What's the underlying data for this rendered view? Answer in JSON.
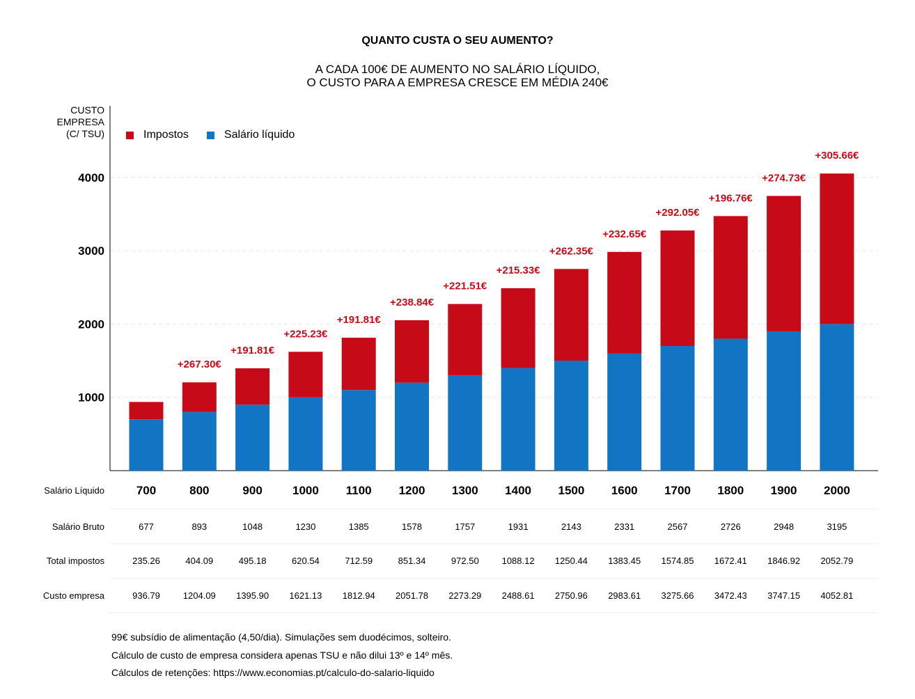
{
  "title": "QUANTO CUSTA O SEU AUMENTO?",
  "subtitle_line1": "A CADA 100€ DE AUMENTO NO SALÁRIO LÍQUIDO,",
  "subtitle_line2": "O CUSTO PARA A EMPRESA CRESCE EM MÉDIA 240€",
  "ylabel_line1": "CUSTO",
  "ylabel_line2": "EMPRESA",
  "ylabel_line3": "(C/ TSU)",
  "legend": [
    {
      "label": "Impostos",
      "color": "#c70a17"
    },
    {
      "label": "Salário líquido",
      "color": "#1275c4"
    }
  ],
  "table_rows": [
    {
      "label": "Salário Líquido"
    },
    {
      "label": "Salário Bruto"
    },
    {
      "label": "Total impostos"
    },
    {
      "label": "Custo empresa"
    }
  ],
  "chart_data": {
    "type": "bar",
    "stacked": true,
    "categories": [
      "700",
      "800",
      "900",
      "1000",
      "1100",
      "1200",
      "1300",
      "1400",
      "1500",
      "1600",
      "1700",
      "1800",
      "1900",
      "2000"
    ],
    "series": [
      {
        "name": "Salário líquido",
        "color": "#1275c4",
        "values": [
          700,
          800,
          900,
          1000,
          1100,
          1200,
          1300,
          1400,
          1500,
          1600,
          1700,
          1800,
          1900,
          2000
        ]
      },
      {
        "name": "Impostos",
        "color": "#c70a17",
        "values": [
          236.79,
          404.09,
          495.9,
          621.13,
          712.94,
          851.78,
          973.29,
          1088.61,
          1250.96,
          1383.61,
          1575.66,
          1672.43,
          1847.15,
          2052.81
        ]
      }
    ],
    "annotations": [
      "",
      "+267.30€",
      "+191.81€",
      "+225.23€",
      "+191.81€",
      "+238.84€",
      "+221.51€",
      "+215.33€",
      "+262.35€",
      "+232.65€",
      "+292.05€",
      "+196.76€",
      "+274.73€",
      "+305.66€"
    ],
    "yticks": [
      1000,
      2000,
      3000,
      4000
    ],
    "ylim": [
      0,
      4200
    ],
    "grid": true,
    "legend_position": "top-left",
    "salario_bruto": [
      "677",
      "893",
      "1048",
      "1230",
      "1385",
      "1578",
      "1757",
      "1931",
      "2143",
      "2331",
      "2567",
      "2726",
      "2948",
      "3195"
    ],
    "total_impostos": [
      "235.26",
      "404.09",
      "495.18",
      "620.54",
      "712.59",
      "851.34",
      "972.50",
      "1088.12",
      "1250.44",
      "1383.45",
      "1574.85",
      "1672.41",
      "1846.92",
      "2052.79"
    ],
    "custo_empresa": [
      "936.79",
      "1204.09",
      "1395.90",
      "1621.13",
      "1812.94",
      "2051.78",
      "2273.29",
      "2488.61",
      "2750.96",
      "2983.61",
      "3275.66",
      "3472.43",
      "3747.15",
      "4052.81"
    ]
  },
  "footnotes": [
    "99€ subsídio de alimentação (4,50/dia). Simulações sem duodécimos, solteiro.",
    "Cálculo de custo de empresa considera apenas TSU e não dilui 13º e 14º mês.",
    "Cálculos de retenções: https://www.economias.pt/calculo-do-salario-liquido"
  ]
}
